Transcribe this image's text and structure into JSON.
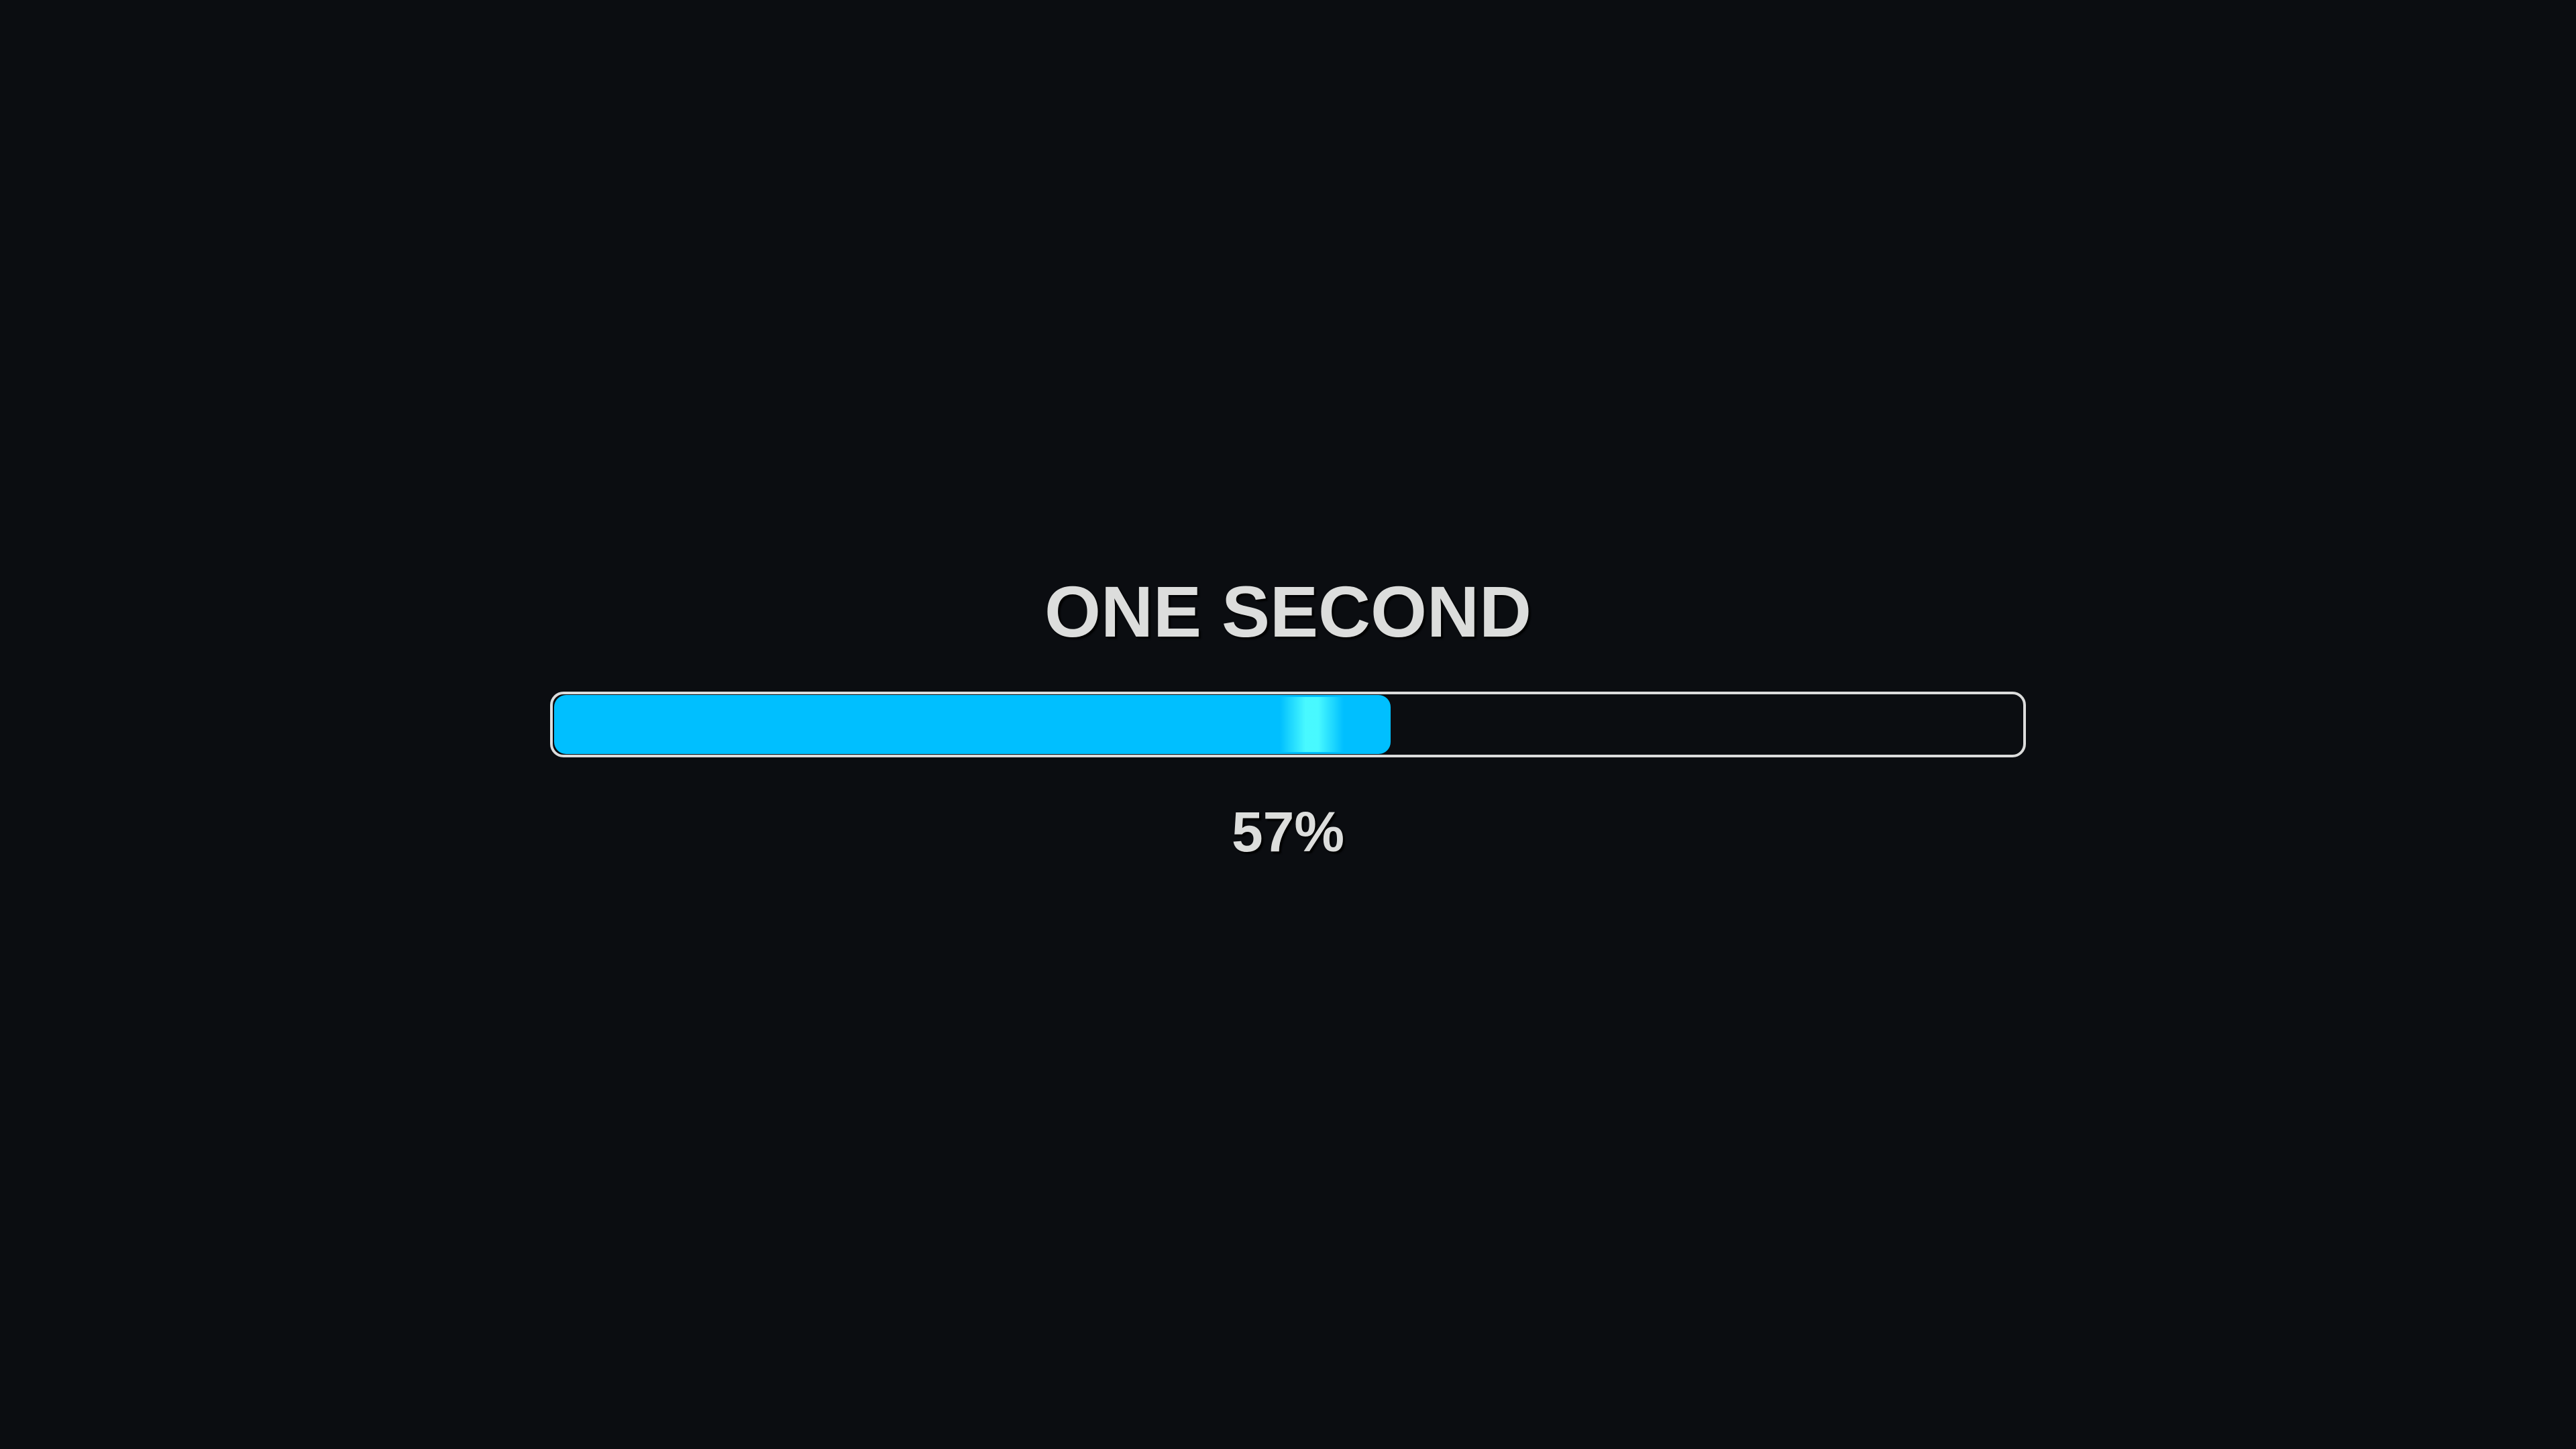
{
  "title": "ONE SECOND",
  "progress": {
    "value_percent": 57,
    "label": "57%",
    "fill_color": "#00bfff",
    "highlight_color": "#50ffff",
    "track_border_color": "#dcdcdc"
  },
  "background_color": "#0b0d11"
}
